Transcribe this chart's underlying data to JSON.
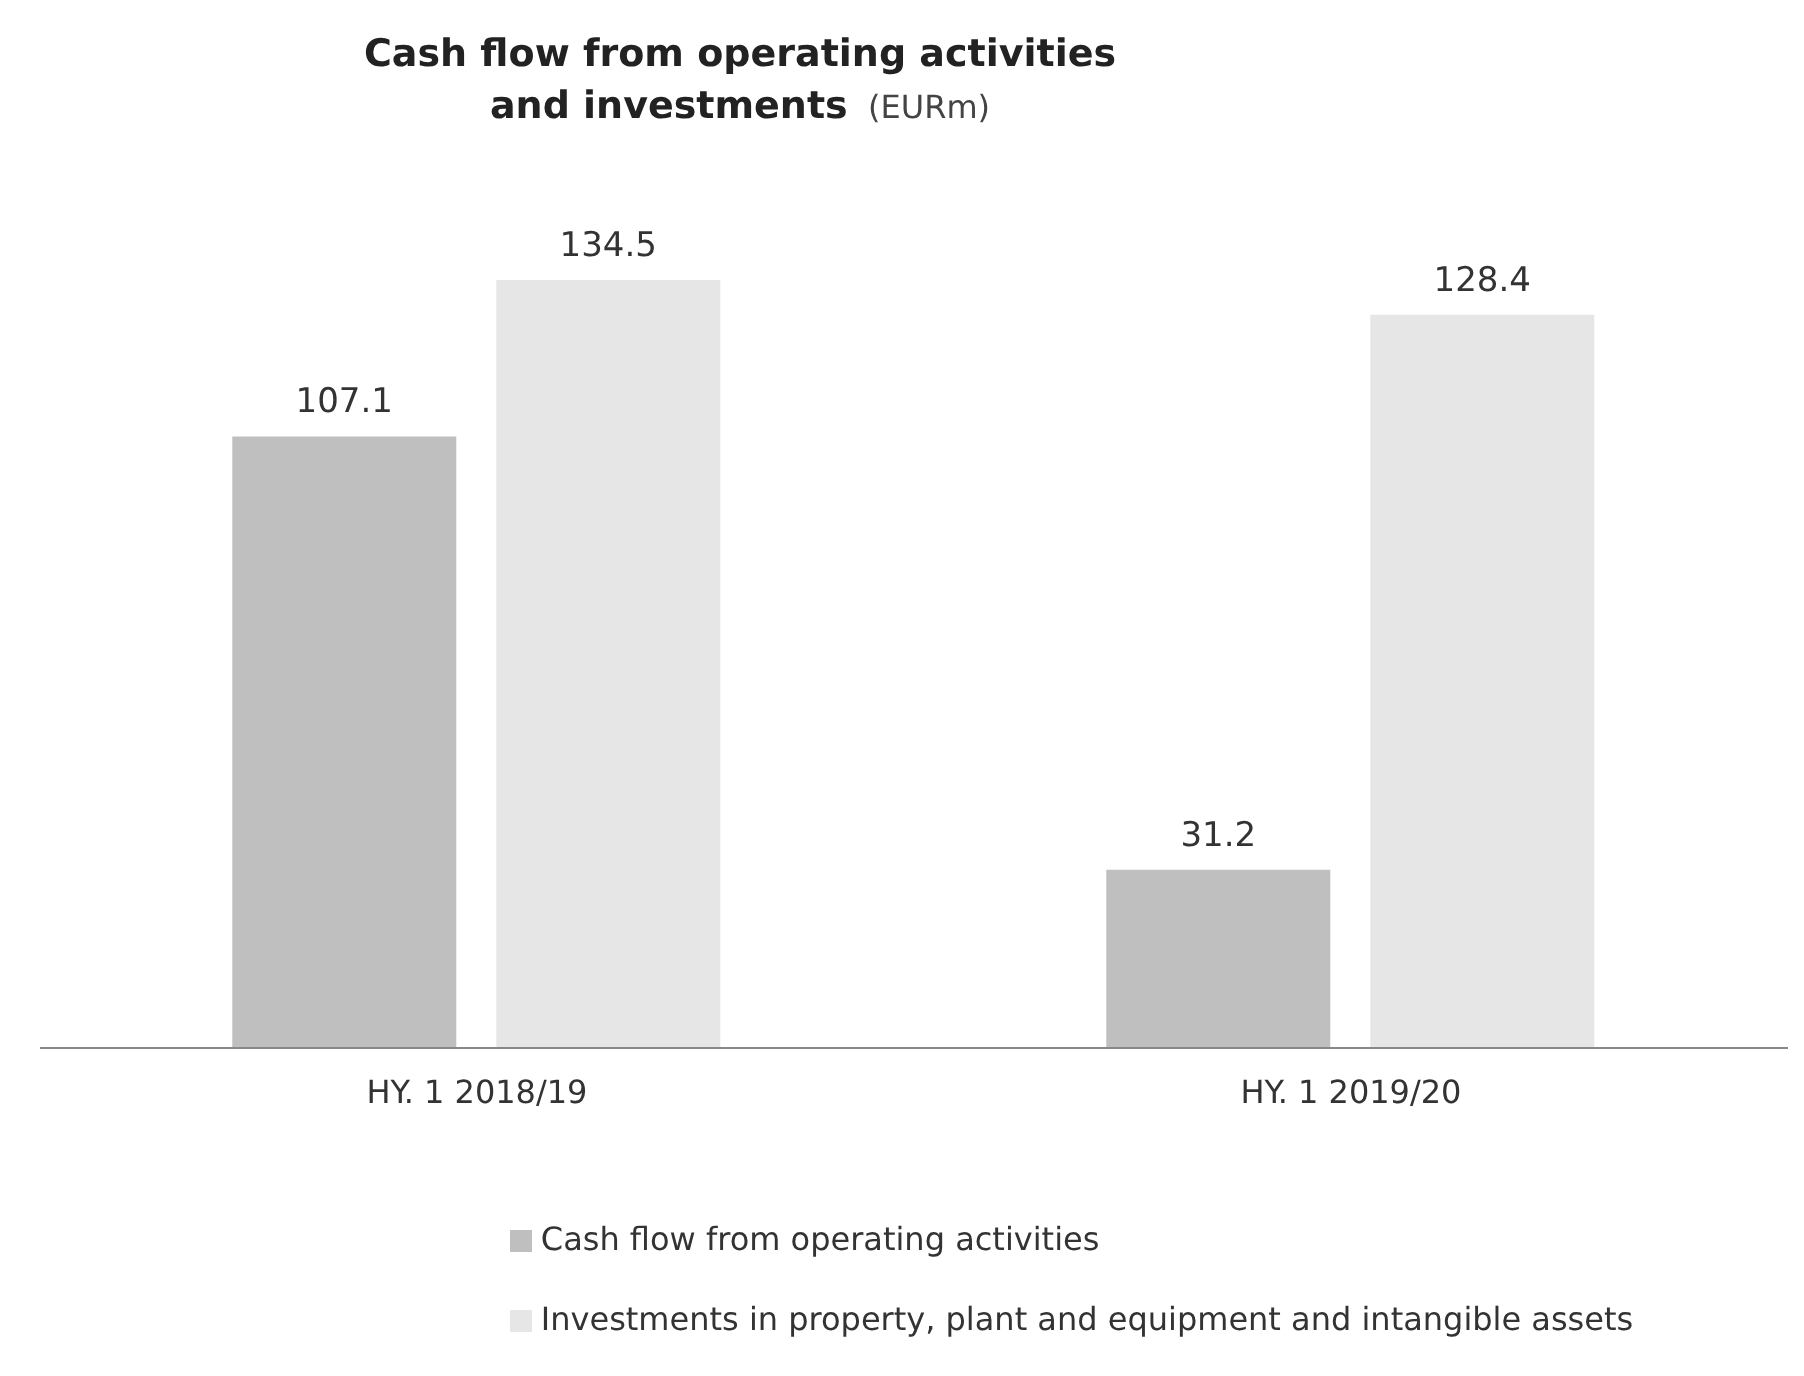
{
  "chart_data": {
    "type": "bar",
    "title": "Cash flow from operating activities and investments",
    "subtitle": "(EURm)",
    "categories": [
      "HY. 1 2018/19",
      "HY. 1 2019/20"
    ],
    "series": [
      {
        "name": "Cash flow from operating activities",
        "color": "#bfbfbf",
        "values": [
          107.1,
          31.2
        ]
      },
      {
        "name": "Investments in property, plant and equipment and intangible assets",
        "color": "#e6e6e6",
        "values": [
          134.5,
          128.4
        ]
      }
    ],
    "data_labels": true,
    "grid": false,
    "legend": "bottom"
  }
}
